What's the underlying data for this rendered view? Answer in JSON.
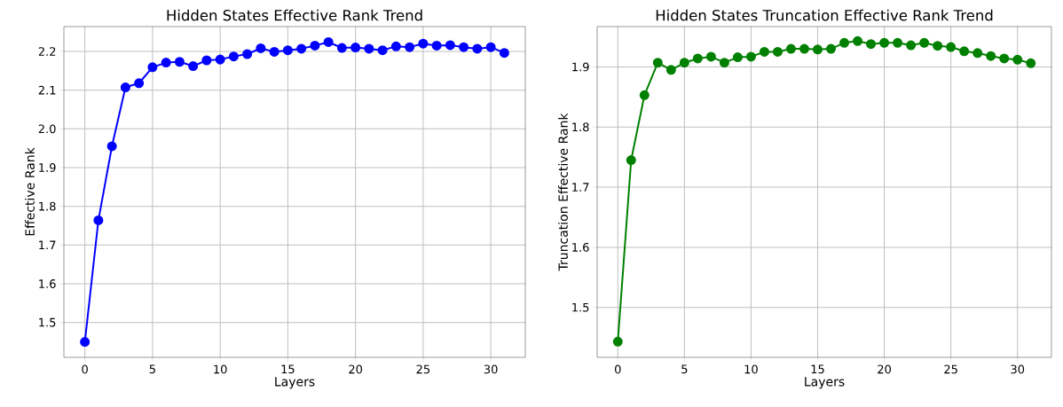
{
  "chart_data": [
    {
      "type": "line",
      "title": "Hidden States Effective Rank Trend",
      "xlabel": "Layers",
      "ylabel": "Effective Rank",
      "x": [
        0,
        1,
        2,
        3,
        4,
        5,
        6,
        7,
        8,
        9,
        10,
        11,
        12,
        13,
        14,
        15,
        16,
        17,
        18,
        19,
        20,
        21,
        22,
        23,
        24,
        25,
        26,
        27,
        28,
        29,
        30,
        31
      ],
      "series": [
        {
          "color": "#0000ff",
          "values": [
            1.45,
            1.764,
            1.955,
            2.107,
            2.118,
            2.159,
            2.171,
            2.173,
            2.162,
            2.177,
            2.179,
            2.187,
            2.193,
            2.208,
            2.199,
            2.203,
            2.207,
            2.215,
            2.224,
            2.209,
            2.21,
            2.207,
            2.203,
            2.213,
            2.211,
            2.22,
            2.215,
            2.216,
            2.211,
            2.207,
            2.211,
            2.196
          ]
        }
      ],
      "xlim": [
        -1.55,
        32.55
      ],
      "ylim": [
        1.41,
        2.264
      ],
      "xticks": [
        0,
        5,
        10,
        15,
        20,
        25,
        30
      ],
      "yticks": [
        1.5,
        1.6,
        1.7,
        1.8,
        1.9,
        {
          "value": 2.0,
          "label": "2.0"
        },
        2.1,
        2.2
      ],
      "grid": true,
      "marker": "circle",
      "line_style": "solid"
    },
    {
      "type": "line",
      "title": "Hidden States Truncation Effective Rank Trend",
      "xlabel": "Layers",
      "ylabel": "Truncation Effective Rank",
      "x": [
        0,
        1,
        2,
        3,
        4,
        5,
        6,
        7,
        8,
        9,
        10,
        11,
        12,
        13,
        14,
        15,
        16,
        17,
        18,
        19,
        20,
        21,
        22,
        23,
        24,
        25,
        26,
        27,
        28,
        29,
        30,
        31
      ],
      "series": [
        {
          "color": "#008000",
          "values": [
            1.443,
            1.745,
            1.853,
            1.907,
            1.895,
            1.907,
            1.914,
            1.917,
            1.907,
            1.916,
            1.917,
            1.925,
            1.925,
            1.93,
            1.93,
            1.929,
            1.93,
            1.94,
            1.943,
            1.938,
            1.94,
            1.94,
            1.936,
            1.94,
            1.935,
            1.933,
            1.926,
            1.923,
            1.918,
            1.914,
            1.912,
            1.906
          ]
        }
      ],
      "xlim": [
        -1.55,
        32.55
      ],
      "ylim": [
        1.417,
        1.967
      ],
      "xticks": [
        0,
        5,
        10,
        15,
        20,
        25,
        30
      ],
      "yticks": [
        1.5,
        1.6,
        1.7,
        1.8,
        1.9
      ],
      "grid": true,
      "marker": "circle",
      "line_style": "solid"
    }
  ]
}
